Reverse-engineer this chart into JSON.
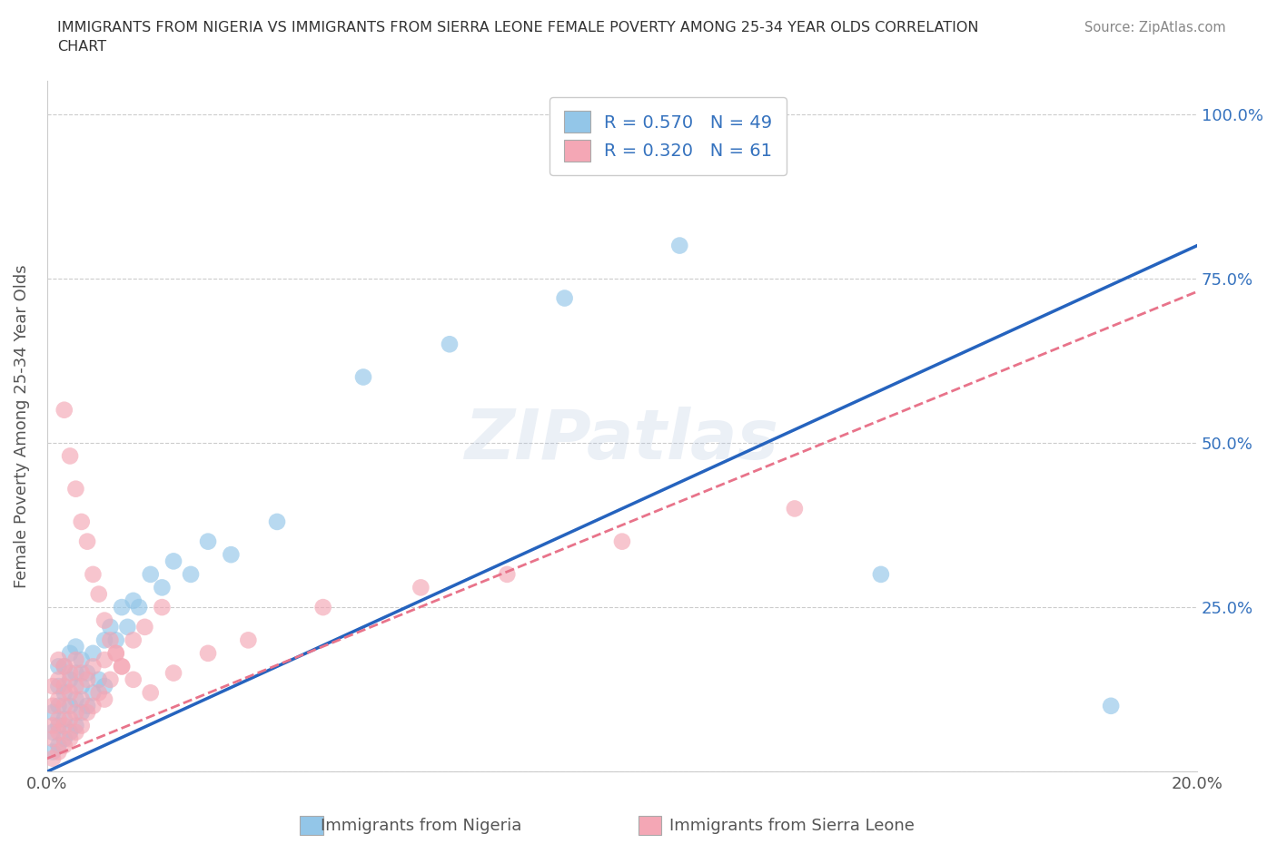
{
  "title": "IMMIGRANTS FROM NIGERIA VS IMMIGRANTS FROM SIERRA LEONE FEMALE POVERTY AMONG 25-34 YEAR OLDS CORRELATION\nCHART",
  "source": "Source: ZipAtlas.com",
  "ylabel": "Female Poverty Among 25-34 Year Olds",
  "xlim": [
    0.0,
    0.2
  ],
  "ylim": [
    0.0,
    1.05
  ],
  "yticks": [
    0.0,
    0.25,
    0.5,
    0.75,
    1.0
  ],
  "ytick_labels": [
    "",
    "25.0%",
    "50.0%",
    "75.0%",
    "100.0%"
  ],
  "xticks": [
    0.0,
    0.05,
    0.1,
    0.15,
    0.2
  ],
  "xtick_labels": [
    "0.0%",
    "",
    "",
    "",
    "20.0%"
  ],
  "nigeria_color": "#93C6E8",
  "sierra_color": "#F4A7B5",
  "nigeria_R": 0.57,
  "nigeria_N": 49,
  "sierra_R": 0.32,
  "sierra_N": 61,
  "nigeria_line_color": "#2563BE",
  "sierra_line_color": "#E8738A",
  "watermark": "ZIPatlas",
  "nigeria_line": [
    0.0,
    0.0,
    0.2,
    0.8
  ],
  "sierra_line": [
    0.0,
    0.02,
    0.2,
    0.73
  ],
  "nigeria_x": [
    0.001,
    0.001,
    0.001,
    0.002,
    0.002,
    0.002,
    0.002,
    0.002,
    0.003,
    0.003,
    0.003,
    0.003,
    0.004,
    0.004,
    0.004,
    0.004,
    0.005,
    0.005,
    0.005,
    0.005,
    0.006,
    0.006,
    0.006,
    0.007,
    0.007,
    0.008,
    0.008,
    0.009,
    0.01,
    0.01,
    0.011,
    0.012,
    0.013,
    0.014,
    0.015,
    0.016,
    0.018,
    0.02,
    0.022,
    0.025,
    0.028,
    0.032,
    0.04,
    0.055,
    0.07,
    0.09,
    0.11,
    0.145,
    0.185
  ],
  "nigeria_y": [
    0.03,
    0.06,
    0.09,
    0.04,
    0.07,
    0.1,
    0.13,
    0.16,
    0.05,
    0.08,
    0.12,
    0.16,
    0.06,
    0.1,
    0.14,
    0.18,
    0.07,
    0.11,
    0.15,
    0.19,
    0.09,
    0.13,
    0.17,
    0.1,
    0.15,
    0.12,
    0.18,
    0.14,
    0.13,
    0.2,
    0.22,
    0.2,
    0.25,
    0.22,
    0.26,
    0.25,
    0.3,
    0.28,
    0.32,
    0.3,
    0.35,
    0.33,
    0.38,
    0.6,
    0.65,
    0.72,
    0.8,
    0.3,
    0.1
  ],
  "sierra_x": [
    0.001,
    0.001,
    0.001,
    0.001,
    0.001,
    0.002,
    0.002,
    0.002,
    0.002,
    0.002,
    0.002,
    0.003,
    0.003,
    0.003,
    0.003,
    0.003,
    0.004,
    0.004,
    0.004,
    0.004,
    0.005,
    0.005,
    0.005,
    0.005,
    0.006,
    0.006,
    0.006,
    0.007,
    0.007,
    0.008,
    0.008,
    0.009,
    0.01,
    0.01,
    0.011,
    0.012,
    0.013,
    0.015,
    0.017,
    0.02,
    0.003,
    0.004,
    0.005,
    0.006,
    0.007,
    0.008,
    0.009,
    0.01,
    0.011,
    0.012,
    0.013,
    0.015,
    0.018,
    0.022,
    0.028,
    0.035,
    0.048,
    0.065,
    0.08,
    0.1,
    0.13
  ],
  "sierra_y": [
    0.02,
    0.05,
    0.07,
    0.1,
    0.13,
    0.03,
    0.06,
    0.08,
    0.11,
    0.14,
    0.17,
    0.04,
    0.07,
    0.1,
    0.13,
    0.16,
    0.05,
    0.08,
    0.12,
    0.15,
    0.06,
    0.09,
    0.13,
    0.17,
    0.07,
    0.11,
    0.15,
    0.09,
    0.14,
    0.1,
    0.16,
    0.12,
    0.11,
    0.17,
    0.14,
    0.18,
    0.16,
    0.2,
    0.22,
    0.25,
    0.55,
    0.48,
    0.43,
    0.38,
    0.35,
    0.3,
    0.27,
    0.23,
    0.2,
    0.18,
    0.16,
    0.14,
    0.12,
    0.15,
    0.18,
    0.2,
    0.25,
    0.28,
    0.3,
    0.35,
    0.4
  ]
}
